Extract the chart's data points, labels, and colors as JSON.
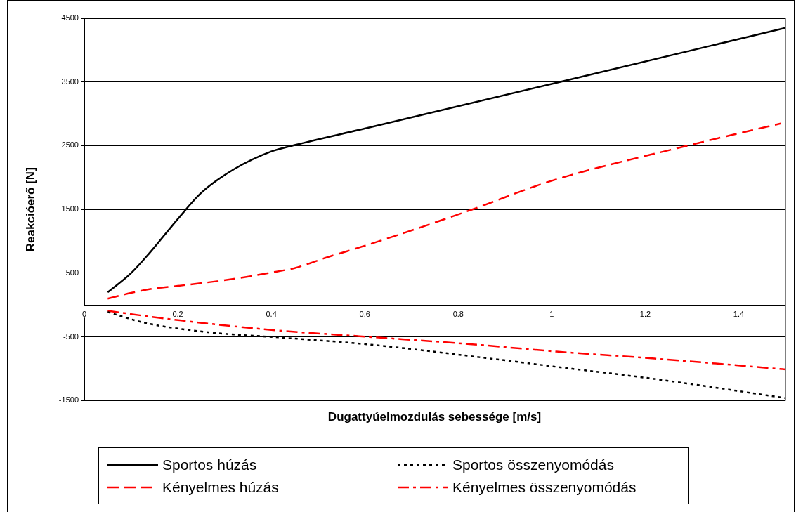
{
  "chart_data": {
    "type": "line",
    "xlabel": "Dugattyúelmozdulás sebessége [m/s]",
    "ylabel": "Reakcióerő [N]",
    "xlim": [
      0,
      1.5
    ],
    "xticks": [
      0,
      0.2,
      0.4,
      0.6,
      0.8,
      1,
      1.2,
      1.4
    ],
    "ylim": [
      -1500,
      4500
    ],
    "yticks": [
      -1500,
      -500,
      500,
      1500,
      2500,
      3500,
      4500
    ],
    "grid": "y",
    "legend": "bottom",
    "marker": "none",
    "series": [
      {
        "name": "Sportos húzás",
        "color": "#000000",
        "line_style": "solid",
        "x": [
          0.05,
          0.1,
          0.14,
          0.2,
          0.25,
          0.32,
          0.4,
          0.45,
          0.6,
          1.017,
          1.5
        ],
        "values": [
          200,
          500,
          820,
          1350,
          1760,
          2130,
          2410,
          2510,
          2770,
          3500,
          4350
        ]
      },
      {
        "name": "Sportos összenyomódás",
        "color": "#000000",
        "line_style": "dotted",
        "x": [
          0.05,
          0.13,
          0.27,
          0.42,
          0.61,
          0.88,
          1.01,
          1.22,
          1.5
        ],
        "values": [
          -110,
          -280,
          -430,
          -510,
          -620,
          -850,
          -970,
          -1160,
          -1460
        ]
      },
      {
        "name": "Kényelmes húzás",
        "color": "#ff0000",
        "line_style": "dashed",
        "x": [
          0.05,
          0.1,
          0.15,
          0.2,
          0.32,
          0.4,
          0.45,
          0.52,
          0.6,
          0.72,
          0.83,
          1.0,
          1.29,
          1.49
        ],
        "values": [
          100,
          190,
          260,
          300,
          410,
          510,
          580,
          750,
          930,
          1220,
          1500,
          1950,
          2500,
          2850
        ]
      },
      {
        "name": "Kényelmes összenyomódás",
        "color": "#ff0000",
        "line_style": "dashdot",
        "x": [
          0.05,
          0.17,
          0.4,
          0.61,
          0.82,
          1.01,
          1.22,
          1.5
        ],
        "values": [
          -90,
          -210,
          -390,
          -500,
          -610,
          -730,
          -840,
          -1010
        ]
      }
    ]
  }
}
